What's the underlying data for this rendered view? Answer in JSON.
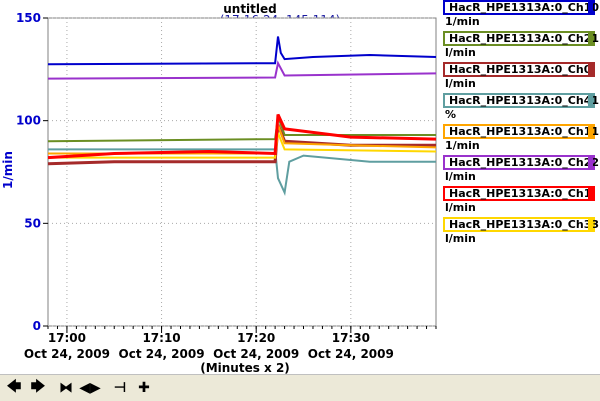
{
  "chart_data": {
    "type": "line",
    "title": "untitled",
    "cursor_readout": "(17:16:24, 145.114)",
    "ylabel": "1/min",
    "ylim": [
      0,
      150
    ],
    "yticks": [
      "0",
      "50",
      "100",
      "150"
    ],
    "xlabel": "(Minutes x 2)",
    "xlim": [
      "16:58",
      "17:39"
    ],
    "grid": true,
    "legend_position": "right",
    "xticks": [
      {
        "time": "17:00",
        "date": "Oct 24, 2009"
      },
      {
        "time": "17:10",
        "date": "Oct 24, 2009"
      },
      {
        "time": "17:20",
        "date": "Oct 24, 2009"
      },
      {
        "time": "17:30",
        "date": "Oct 24, 2009"
      }
    ],
    "series": [
      {
        "name": "HacR_HPE1313A:0_Ch10",
        "unit": "1/min",
        "color": "#0000cc",
        "points": [
          [
            "16:58",
            127.5
          ],
          [
            "17:22",
            128
          ],
          [
            "17:22.3",
            141
          ],
          [
            "17:22.6",
            133
          ],
          [
            "17:23",
            130
          ],
          [
            "17:26",
            131
          ],
          [
            "17:32",
            132
          ],
          [
            "17:39",
            131
          ]
        ]
      },
      {
        "name": "HacR_HPE1313A:0_Ch21",
        "unit": "l/min",
        "color": "#6b8e23",
        "points": [
          [
            "16:58",
            90
          ],
          [
            "17:22",
            91
          ],
          [
            "17:22.3",
            102
          ],
          [
            "17:23",
            93
          ],
          [
            "17:39",
            93
          ]
        ]
      },
      {
        "name": "HacR_HPE1313A:0_Ch0",
        "unit": "l/min",
        "color": "#a52a2a",
        "points": [
          [
            "16:58",
            79
          ],
          [
            "17:05",
            80
          ],
          [
            "17:15",
            80
          ],
          [
            "17:22",
            80
          ],
          [
            "17:22.3",
            98
          ],
          [
            "17:23",
            90
          ],
          [
            "17:30",
            88
          ],
          [
            "17:39",
            88
          ]
        ]
      },
      {
        "name": "HacR_HPE1313A:0_Ch41",
        "unit": "%",
        "color": "#5f9ea0",
        "points": [
          [
            "16:58",
            86
          ],
          [
            "17:22",
            86
          ],
          [
            "17:22.3",
            72
          ],
          [
            "17:23",
            65
          ],
          [
            "17:23.5",
            80
          ],
          [
            "17:25",
            83
          ],
          [
            "17:32",
            80
          ],
          [
            "17:39",
            80
          ]
        ]
      },
      {
        "name": "HacR_HPE1313A:0_Ch11",
        "unit": "1/min",
        "color": "#ffa500",
        "points": [
          [
            "16:58",
            84
          ],
          [
            "17:22",
            84
          ],
          [
            "17:22.3",
            98
          ],
          [
            "17:23",
            89
          ],
          [
            "17:30",
            88
          ],
          [
            "17:39",
            87
          ]
        ]
      },
      {
        "name": "HacR_HPE1313A:0_Ch22",
        "unit": "l/min",
        "color": "#9932cc",
        "points": [
          [
            "16:58",
            120.5
          ],
          [
            "17:22",
            121
          ],
          [
            "17:22.3",
            128
          ],
          [
            "17:23",
            122
          ],
          [
            "17:39",
            123
          ]
        ]
      },
      {
        "name": "HacR_HPE1313A:0_Ch1",
        "unit": "l/min",
        "color": "#ff0000",
        "points": [
          [
            "16:58",
            82
          ],
          [
            "17:05",
            84
          ],
          [
            "17:15",
            85
          ],
          [
            "17:22",
            84
          ],
          [
            "17:22.3",
            103
          ],
          [
            "17:23",
            96
          ],
          [
            "17:30",
            92
          ],
          [
            "17:39",
            91
          ]
        ]
      },
      {
        "name": "HacR_HPE1313A:0_Ch33",
        "unit": "l/min",
        "color": "#ffd700",
        "points": [
          [
            "16:58",
            82
          ],
          [
            "17:22",
            82
          ],
          [
            "17:22.3",
            94
          ],
          [
            "17:23",
            86
          ],
          [
            "17:39",
            85
          ]
        ]
      }
    ]
  },
  "toolbar": {
    "buttons": [
      {
        "name": "scroll-left-button",
        "glyph": "🡄"
      },
      {
        "name": "scroll-right-button",
        "glyph": "🡆"
      },
      {
        "name": "zoom-in-x-button",
        "glyph": "⧓"
      },
      {
        "name": "zoom-out-x-button",
        "glyph": "◀▶"
      },
      {
        "name": "cursor-button",
        "glyph": "⊣"
      },
      {
        "name": "add-cursor-button",
        "glyph": "✚"
      }
    ]
  }
}
